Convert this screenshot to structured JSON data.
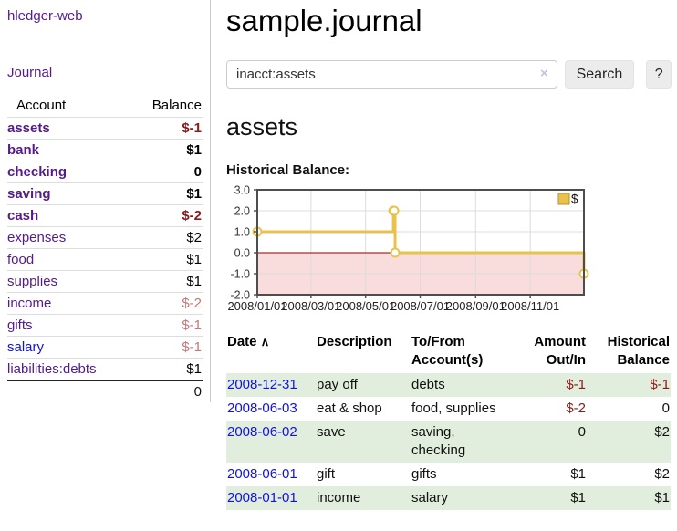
{
  "colors": {
    "purple_link": "#551a8b",
    "blue_link": "#1212e0",
    "negative_strong": "#8b1a1a",
    "negative_soft": "#c17979",
    "row_stripe_green": "#e2eedd",
    "chart_line_gold": "#e8c24a",
    "chart_legend_border": "#b8912a",
    "chart_negative_fill": "#f9dcdc",
    "chart_zero_line": "#8b0000"
  },
  "sidebar": {
    "app_title": "hledger-web",
    "journal_link": "Journal",
    "accounts_table": {
      "headers": {
        "account": "Account",
        "balance": "Balance"
      },
      "rows": [
        {
          "name": "assets",
          "balance": "$-1",
          "level": 1,
          "bold": true,
          "balance_style": "neg-strong",
          "link_color": "purple"
        },
        {
          "name": "bank",
          "balance": "$1",
          "level": 2,
          "bold": true,
          "balance_style": "pos",
          "link_color": "purple"
        },
        {
          "name": "checking",
          "balance": "0",
          "level": 3,
          "bold": true,
          "balance_style": "pos",
          "link_color": "purple"
        },
        {
          "name": "saving",
          "balance": "$1",
          "level": 3,
          "bold": true,
          "balance_style": "pos",
          "link_color": "purple"
        },
        {
          "name": "cash",
          "balance": "$-2",
          "level": 2,
          "bold": true,
          "balance_style": "neg-strong",
          "link_color": "purple"
        },
        {
          "name": "expenses",
          "balance": "$2",
          "level": 1,
          "bold": false,
          "balance_style": "pos",
          "link_color": "purple"
        },
        {
          "name": "food",
          "balance": "$1",
          "level": 2,
          "bold": false,
          "balance_style": "pos",
          "link_color": "purple"
        },
        {
          "name": "supplies",
          "balance": "$1",
          "level": 2,
          "bold": false,
          "balance_style": "pos",
          "link_color": "purple"
        },
        {
          "name": "income",
          "balance": "$-2",
          "level": 1,
          "bold": false,
          "balance_style": "neg-soft",
          "link_color": "purple"
        },
        {
          "name": "gifts",
          "balance": "$-1",
          "level": 2,
          "bold": false,
          "balance_style": "neg-soft",
          "link_color": "purple"
        },
        {
          "name": "salary",
          "balance": "$-1",
          "level": 2,
          "bold": false,
          "balance_style": "neg-soft",
          "link_color": "blue"
        },
        {
          "name": "liabilities:debts",
          "balance": "$1",
          "level": 1,
          "bold": false,
          "balance_style": "pos",
          "link_color": "purple"
        }
      ],
      "total": "0"
    }
  },
  "main": {
    "title": "sample.journal",
    "search": {
      "value": "inacct:assets",
      "clear_icon": "×",
      "search_button": "Search",
      "help_button": "?"
    },
    "account_heading": "assets",
    "chart_label": "Historical Balance:",
    "register_table": {
      "headers": {
        "date": "Date",
        "sort_indicator": "∧",
        "description": "Description",
        "accounts": "To/From Account(s)",
        "amount": "Amount Out/In",
        "balance": "Historical Balance"
      },
      "rows": [
        {
          "date": "2008-12-31",
          "description": "pay off",
          "accounts": "debts",
          "amount": "$-1",
          "amount_neg": true,
          "balance": "$-1",
          "balance_neg": true
        },
        {
          "date": "2008-06-03",
          "description": "eat & shop",
          "accounts": "food, supplies",
          "amount": "$-2",
          "amount_neg": true,
          "balance": "0",
          "balance_neg": false
        },
        {
          "date": "2008-06-02",
          "description": "save",
          "accounts": "saving, checking",
          "amount": "0",
          "amount_neg": false,
          "balance": "$2",
          "balance_neg": false
        },
        {
          "date": "2008-06-01",
          "description": "gift",
          "accounts": "gifts",
          "amount": "$1",
          "amount_neg": false,
          "balance": "$2",
          "balance_neg": false
        },
        {
          "date": "2008-01-01",
          "description": "income",
          "accounts": "salary",
          "amount": "$1",
          "amount_neg": false,
          "balance": "$1",
          "balance_neg": false
        }
      ]
    }
  },
  "chart_data": {
    "type": "line",
    "title": "Historical Balance:",
    "step": true,
    "legend": {
      "label": "$",
      "position": "top-right"
    },
    "ylim": [
      -2,
      3
    ],
    "y_ticks": [
      {
        "value": 3,
        "label": "3.0"
      },
      {
        "value": 2,
        "label": "2.0"
      },
      {
        "value": 1,
        "label": "1.0"
      },
      {
        "value": 0,
        "label": "0.0"
      },
      {
        "value": -1,
        "label": "-1.0"
      },
      {
        "value": -2,
        "label": "-2.0"
      }
    ],
    "xlim_days": [
      0,
      365
    ],
    "x_ticks": [
      {
        "day": 0,
        "label": "2008/01/01"
      },
      {
        "day": 60,
        "label": "2008/03/01"
      },
      {
        "day": 121,
        "label": "2008/05/01"
      },
      {
        "day": 182,
        "label": "2008/07/01"
      },
      {
        "day": 244,
        "label": "2008/09/01"
      },
      {
        "day": 305,
        "label": "2008/11/01"
      }
    ],
    "series": [
      {
        "name": "$",
        "points": [
          {
            "date": "2008-01-01",
            "day": 0,
            "value": 1
          },
          {
            "date": "2008-06-01",
            "day": 152,
            "value": 2
          },
          {
            "date": "2008-06-02",
            "day": 153,
            "value": 2
          },
          {
            "date": "2008-06-03",
            "day": 154,
            "value": 0
          },
          {
            "date": "2008-12-31",
            "day": 365,
            "value": -1
          }
        ]
      }
    ],
    "grid": true,
    "negative_region_filled": true
  }
}
